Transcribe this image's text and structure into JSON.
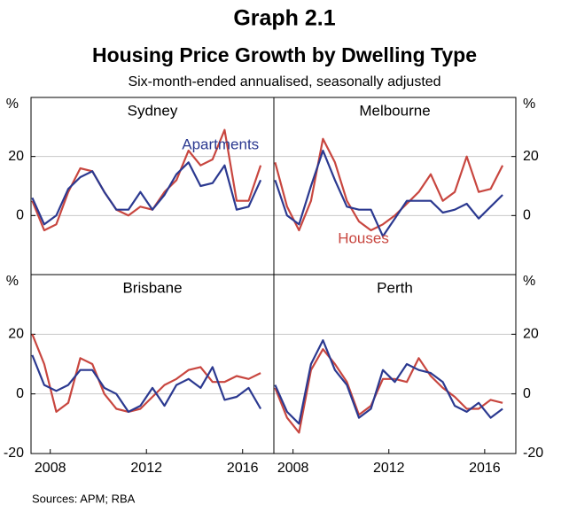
{
  "header": {
    "title": "Graph 2.1",
    "subtitle": "Housing Price Growth by Dwelling Type",
    "note": "Six-month-ended annualised, seasonally adjusted"
  },
  "footer": {
    "source": "Sources:   APM; RBA"
  },
  "chart_data": [
    {
      "type": "line",
      "title": "Sydney",
      "ylabel": "%",
      "x": [
        2007.25,
        2007.75,
        2008.25,
        2008.75,
        2009.25,
        2009.75,
        2010.25,
        2010.75,
        2011.25,
        2011.75,
        2012.25,
        2012.75,
        2013.25,
        2013.75,
        2014.25,
        2014.75,
        2015.25,
        2015.75,
        2016.25,
        2016.75
      ],
      "xlim": [
        2007.2,
        2017.3
      ],
      "ylim": [
        -20,
        40
      ],
      "yticks": [
        0,
        20
      ],
      "grid": true,
      "series": [
        {
          "color": "#c8463f",
          "values": [
            5,
            -5,
            -3,
            8,
            16,
            15,
            8,
            2,
            0,
            3,
            2,
            8,
            12,
            22,
            17,
            19,
            29,
            5,
            5,
            17
          ]
        },
        {
          "name": "Apartments",
          "color": "#2b3990",
          "values": [
            6,
            -3,
            0,
            9,
            13,
            15,
            8,
            2,
            2,
            8,
            2,
            7,
            14,
            18,
            10,
            11,
            17,
            2,
            3,
            12
          ]
        }
      ]
    },
    {
      "type": "line",
      "title": "Melbourne",
      "ylabel": "%",
      "x": [
        2007.25,
        2007.75,
        2008.25,
        2008.75,
        2009.25,
        2009.75,
        2010.25,
        2010.75,
        2011.25,
        2011.75,
        2012.25,
        2012.75,
        2013.25,
        2013.75,
        2014.25,
        2014.75,
        2015.25,
        2015.75,
        2016.25,
        2016.75
      ],
      "xlim": [
        2007.2,
        2017.3
      ],
      "ylim": [
        -20,
        40
      ],
      "yticks": [
        0,
        20
      ],
      "grid": true,
      "series": [
        {
          "name": "Houses",
          "color": "#c8463f",
          "values": [
            18,
            3,
            -5,
            5,
            26,
            18,
            5,
            -2,
            -5,
            -3,
            0,
            4,
            8,
            14,
            5,
            8,
            20,
            8,
            9,
            17
          ]
        },
        {
          "color": "#2b3990",
          "values": [
            12,
            0,
            -3,
            10,
            22,
            12,
            3,
            2,
            2,
            -7,
            -1,
            5,
            5,
            5,
            1,
            2,
            4,
            -1,
            3,
            7
          ]
        }
      ]
    },
    {
      "type": "line",
      "title": "Brisbane",
      "ylabel": "%",
      "x": [
        2007.25,
        2007.75,
        2008.25,
        2008.75,
        2009.25,
        2009.75,
        2010.25,
        2010.75,
        2011.25,
        2011.75,
        2012.25,
        2012.75,
        2013.25,
        2013.75,
        2014.25,
        2014.75,
        2015.25,
        2015.75,
        2016.25,
        2016.75
      ],
      "xlim": [
        2007.2,
        2017.3
      ],
      "ylim": [
        -20,
        40
      ],
      "yticks": [
        -20,
        0,
        20
      ],
      "xticks": [
        2008,
        2012,
        2016
      ],
      "grid": true,
      "series": [
        {
          "color": "#c8463f",
          "values": [
            20,
            10,
            -6,
            -3,
            12,
            10,
            0,
            -5,
            -6,
            -5,
            -1,
            3,
            5,
            8,
            9,
            4,
            4,
            6,
            5,
            7
          ]
        },
        {
          "color": "#2b3990",
          "values": [
            13,
            3,
            1,
            3,
            8,
            8,
            2,
            0,
            -6,
            -4,
            2,
            -4,
            3,
            5,
            2,
            9,
            -2,
            -1,
            2,
            -5
          ]
        }
      ]
    },
    {
      "type": "line",
      "title": "Perth",
      "ylabel": "%",
      "x": [
        2007.25,
        2007.75,
        2008.25,
        2008.75,
        2009.25,
        2009.75,
        2010.25,
        2010.75,
        2011.25,
        2011.75,
        2012.25,
        2012.75,
        2013.25,
        2013.75,
        2014.25,
        2014.75,
        2015.25,
        2015.75,
        2016.25,
        2016.75
      ],
      "xlim": [
        2007.2,
        2017.3
      ],
      "ylim": [
        -20,
        40
      ],
      "yticks": [
        -20,
        0,
        20
      ],
      "xticks": [
        2008,
        2012,
        2016
      ],
      "grid": true,
      "series": [
        {
          "color": "#c8463f",
          "values": [
            2,
            -8,
            -13,
            8,
            15,
            10,
            4,
            -7,
            -4,
            5,
            5,
            4,
            12,
            6,
            2,
            -1,
            -5,
            -5,
            -2,
            -3
          ]
        },
        {
          "color": "#2b3990",
          "values": [
            3,
            -6,
            -10,
            10,
            18,
            8,
            3,
            -8,
            -5,
            8,
            4,
            10,
            8,
            7,
            4,
            -4,
            -6,
            -3,
            -8,
            -5
          ]
        }
      ]
    }
  ]
}
